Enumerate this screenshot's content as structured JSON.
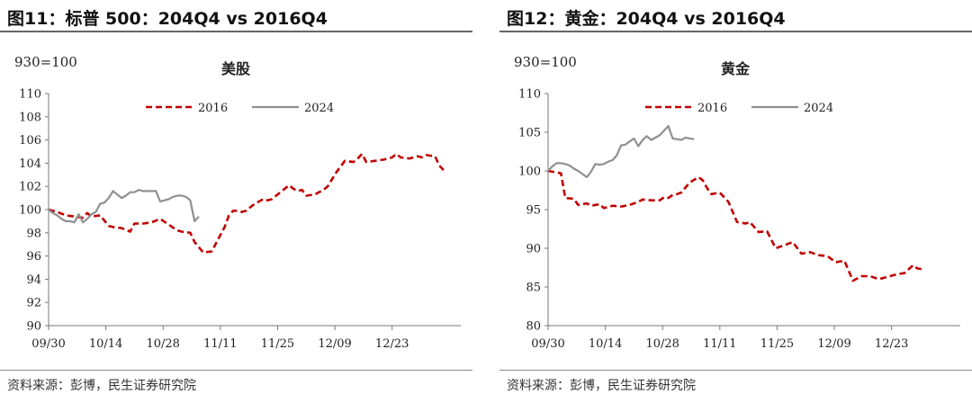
{
  "panels": [
    {
      "title": "图11：标普 500：204Q4 vs 2016Q4",
      "source": "资料来源：彭博，民生证券研究院"
    },
    {
      "title": "图12：黄金：204Q4 vs 2016Q4",
      "source": "资料来源：彭博，民生证券研究院"
    }
  ],
  "chart_data": [
    {
      "type": "line",
      "title": "美股",
      "subtitle": "930=100",
      "x_ticks": [
        "09/30",
        "10/14",
        "10/28",
        "11/11",
        "11/25",
        "12/09",
        "12/23"
      ],
      "xlim": [
        0,
        96
      ],
      "ylim": [
        90,
        110
      ],
      "y_ticks": [
        90,
        92,
        94,
        96,
        98,
        100,
        102,
        104,
        106,
        108,
        110
      ],
      "legend": "top-center",
      "series": [
        {
          "name": "2016",
          "color": "#c00000",
          "dash": true,
          "x": [
            0,
            2,
            4,
            6,
            8,
            9,
            10,
            12,
            14,
            15,
            17,
            19,
            20,
            22,
            24,
            26,
            28,
            30,
            31,
            33,
            34,
            36,
            38,
            40,
            41,
            42,
            43,
            44,
            45,
            46,
            48,
            50,
            51,
            52,
            54,
            56,
            57,
            58,
            59,
            60,
            62,
            64,
            65,
            67,
            69,
            71,
            72,
            73,
            74,
            76,
            78,
            80,
            81,
            82,
            84,
            86,
            87,
            88,
            90,
            91,
            92
          ],
          "y": [
            100.0,
            99.8,
            99.5,
            99.4,
            99.3,
            99.7,
            99.4,
            99.5,
            98.6,
            98.5,
            98.4,
            98.1,
            98.8,
            98.8,
            98.9,
            99.2,
            98.7,
            98.2,
            98.1,
            98.0,
            97.2,
            96.3,
            96.4,
            97.8,
            98.5,
            99.5,
            99.9,
            99.9,
            99.8,
            99.9,
            100.5,
            100.9,
            100.8,
            100.9,
            101.5,
            102.1,
            101.8,
            101.6,
            101.7,
            101.2,
            101.3,
            101.7,
            102.0,
            103.2,
            104.2,
            104.1,
            104.4,
            104.8,
            104.1,
            104.2,
            104.3,
            104.5,
            104.8,
            104.5,
            104.4,
            104.6,
            104.5,
            104.7,
            104.6,
            103.8,
            103.4
          ]
        },
        {
          "name": "2024",
          "color": "#8f8f8f",
          "dash": false,
          "x": [
            0,
            1,
            2,
            3,
            4,
            5,
            6,
            7,
            8,
            9,
            10,
            11,
            12,
            13,
            14,
            15,
            16,
            17,
            18,
            19,
            20,
            21,
            22,
            23,
            24,
            25,
            26,
            27,
            28,
            29,
            30,
            31,
            32,
            33,
            34,
            35
          ],
          "y": [
            100.0,
            99.7,
            99.5,
            99.2,
            99.0,
            99.0,
            98.9,
            99.6,
            98.9,
            99.2,
            99.6,
            99.8,
            100.5,
            100.6,
            101.0,
            101.6,
            101.3,
            101.0,
            101.2,
            101.5,
            101.5,
            101.7,
            101.6,
            101.6,
            101.6,
            101.6,
            100.7,
            100.8,
            100.9,
            101.1,
            101.2,
            101.2,
            101.1,
            100.8,
            99.0,
            99.4
          ]
        }
      ]
    },
    {
      "type": "line",
      "title": "黄金",
      "subtitle": "930=100",
      "x_ticks": [
        "09/30",
        "10/14",
        "10/28",
        "11/11",
        "11/25",
        "12/09",
        "12/23"
      ],
      "xlim": [
        0,
        96
      ],
      "ylim": [
        80,
        110
      ],
      "y_ticks": [
        80,
        85,
        90,
        95,
        100,
        105,
        110
      ],
      "legend": "top-center",
      "series": [
        {
          "name": "2016",
          "color": "#c00000",
          "dash": true,
          "x": [
            0,
            2,
            3,
            4,
            6,
            7,
            9,
            10,
            12,
            13,
            15,
            17,
            19,
            21,
            22,
            24,
            26,
            27,
            28,
            29,
            30,
            31,
            33,
            35,
            36,
            37,
            38,
            40,
            42,
            44,
            46,
            47,
            49,
            51,
            53,
            55,
            57,
            59,
            61,
            63,
            65,
            67,
            69,
            71,
            73,
            75,
            77,
            79,
            81,
            83,
            85,
            86,
            87
          ],
          "y": [
            100.0,
            99.8,
            99.7,
            96.5,
            96.4,
            95.6,
            95.8,
            95.5,
            95.7,
            95.2,
            95.5,
            95.4,
            95.6,
            96.0,
            96.3,
            96.2,
            96.2,
            96.6,
            96.5,
            96.9,
            97.0,
            97.2,
            98.5,
            99.2,
            98.8,
            97.8,
            97.0,
            97.2,
            96.0,
            93.4,
            93.2,
            93.4,
            92.1,
            92.2,
            90.0,
            90.4,
            90.8,
            89.3,
            89.5,
            89.1,
            89.0,
            88.2,
            88.4,
            85.8,
            86.4,
            86.4,
            86.0,
            86.3,
            86.6,
            86.8,
            87.8,
            87.4,
            87.3
          ]
        },
        {
          "name": "2024",
          "color": "#8f8f8f",
          "dash": false,
          "x": [
            0,
            1,
            2,
            3,
            4,
            5,
            6,
            7,
            8,
            9,
            10,
            11,
            12,
            13,
            14,
            15,
            16,
            17,
            18,
            19,
            20,
            21,
            22,
            23,
            24,
            25,
            26,
            27,
            28,
            29,
            30,
            31,
            32,
            33,
            34
          ],
          "y": [
            100.0,
            100.6,
            101.0,
            101.0,
            100.9,
            100.7,
            100.3,
            100.0,
            99.6,
            99.2,
            99.9,
            100.9,
            100.8,
            100.9,
            101.2,
            101.4,
            102.0,
            103.3,
            103.4,
            103.8,
            104.2,
            103.2,
            104.0,
            104.5,
            104.0,
            104.3,
            104.6,
            105.2,
            105.8,
            104.2,
            104.1,
            104.0,
            104.3,
            104.2,
            104.1
          ]
        }
      ]
    }
  ]
}
